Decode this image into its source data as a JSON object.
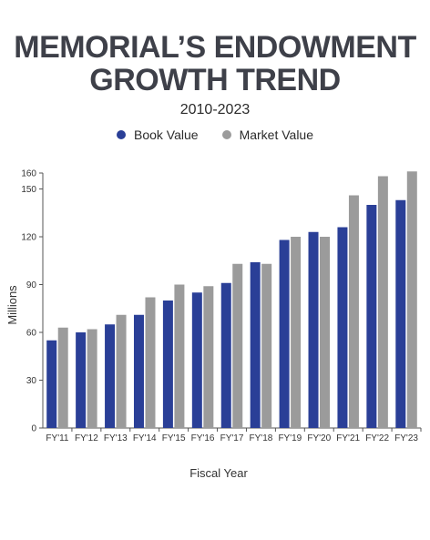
{
  "header": {
    "title_line1": "MEMORIAL’S ENDOWMENT",
    "title_line2": "GROWTH TREND",
    "subtitle": "2010-2023"
  },
  "chart_data": {
    "type": "bar",
    "title": "MEMORIAL’S ENDOWMENT GROWTH TREND",
    "subtitle": "2010-2023",
    "xlabel": "Fiscal Year",
    "ylabel": "Millions",
    "ylim": [
      0,
      160
    ],
    "yticks": [
      0,
      30,
      60,
      90,
      120,
      150,
      160
    ],
    "legend_position": "top-center",
    "categories": [
      "FY'11",
      "FY'12",
      "FY'13",
      "FY'14",
      "FY'15",
      "FY'16",
      "FY'17",
      "FY'18",
      "FY'19",
      "FY'20",
      "FY'21",
      "FY'22",
      "FY'23"
    ],
    "series": [
      {
        "name": "Book Value",
        "color": "#2a3f97",
        "values": [
          55,
          60,
          65,
          71,
          80,
          85,
          91,
          104,
          118,
          123,
          126,
          140,
          143
        ]
      },
      {
        "name": "Market Value",
        "color": "#9b9b9b",
        "values": [
          63,
          62,
          71,
          82,
          90,
          89,
          103,
          103,
          120,
          120,
          146,
          158,
          161
        ]
      }
    ]
  }
}
